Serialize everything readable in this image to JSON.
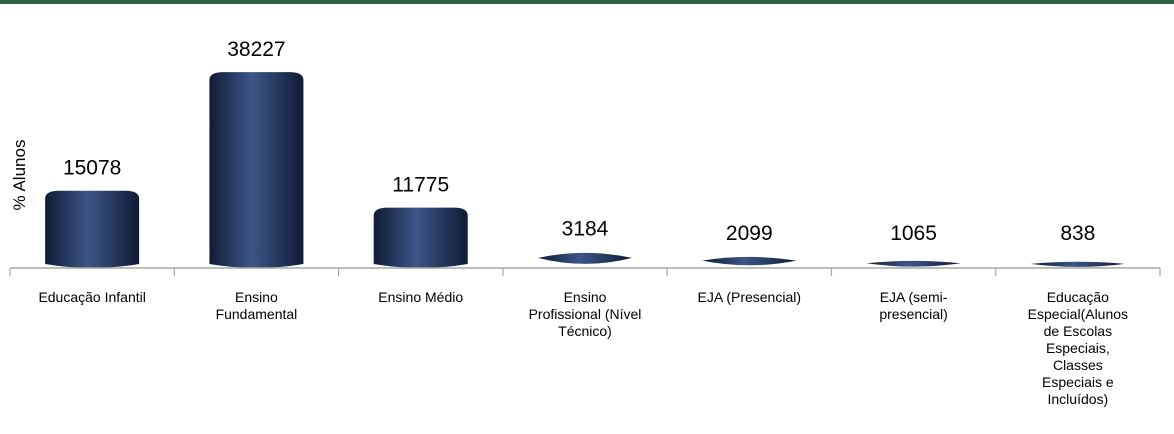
{
  "colors": {
    "top_bar": "#2f5d3f",
    "bar_dark": "#101b35",
    "bar_mid": "#1f3158",
    "bar_light": "#3d5688",
    "axis": "#a6a6a6"
  },
  "chart_data": {
    "type": "bar",
    "title": "",
    "xlabel": "",
    "ylabel": "% Alunos",
    "ylim": [
      0,
      40000
    ],
    "grid": false,
    "legend": "none",
    "categories": [
      [
        "Educação Infantil"
      ],
      [
        "Ensino",
        "Fundamental"
      ],
      [
        "Ensino Médio"
      ],
      [
        "Ensino",
        "Profissional (Nível",
        "Técnico)"
      ],
      [
        "EJA (Presencial)"
      ],
      [
        "EJA (semi-",
        "presencial)"
      ],
      [
        "Educação",
        "Especial(Alunos",
        "de Escolas",
        "Especiais,",
        "Classes",
        "Especiais e",
        "Incluídos)"
      ]
    ],
    "values": [
      15078,
      38227,
      11775,
      3184,
      2099,
      1065,
      838
    ],
    "data_labels": [
      "15078",
      "38227",
      "11775",
      "3184",
      "2099",
      "1065",
      "838"
    ]
  }
}
